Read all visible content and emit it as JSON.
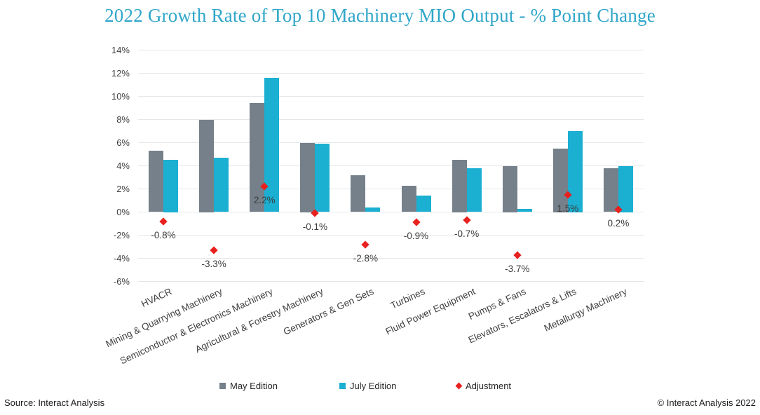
{
  "chart_data": {
    "type": "bar",
    "title": "2022 Growth Rate of Top 10 Machinery MIO Output - % Point Change",
    "categories": [
      "HVACR",
      "Mining & Quarrying Machinery",
      "Semiconductor & Electronics Machinery",
      "Agricultural & Forestry Machinery",
      "Generators & Gen Sets",
      "Turbines",
      "Fluid Power Equipment",
      "Pumps & Fans",
      "Elevators, Escalators & Lifts",
      "Metallurgy Machinery"
    ],
    "series": [
      {
        "name": "May Edition",
        "values": [
          5.3,
          8.0,
          9.4,
          6.0,
          3.2,
          2.3,
          4.5,
          4.0,
          5.5,
          3.8
        ]
      },
      {
        "name": "July Edition",
        "values": [
          4.5,
          4.7,
          11.6,
          5.9,
          0.4,
          1.4,
          3.8,
          0.3,
          7.0,
          4.0
        ]
      }
    ],
    "adjustment": {
      "name": "Adjustment",
      "values": [
        -0.8,
        -3.3,
        2.2,
        -0.1,
        -2.8,
        -0.9,
        -0.7,
        -3.7,
        1.5,
        0.2
      ],
      "labels": [
        "-0.8%",
        "-3.3%",
        "2.2%",
        "-0.1%",
        "-2.8%",
        "-0.9%",
        "-0.7%",
        "-3.7%",
        "1.5%",
        "0.2%"
      ]
    },
    "y_axis": {
      "min": -6,
      "max": 14,
      "step": 2,
      "unit": "%",
      "tick_labels": [
        "14%",
        "12%",
        "10%",
        "8%",
        "6%",
        "4%",
        "2%",
        "0%",
        "-2%",
        "-4%",
        "-6%"
      ]
    },
    "legend": [
      {
        "label": "May Edition",
        "marker": "square"
      },
      {
        "label": "July Edition",
        "marker": "square"
      },
      {
        "label": "Adjustment",
        "marker": "diamond"
      }
    ],
    "legend_position": "bottom",
    "grid": true,
    "colors": {
      "may_edition": "#75808a",
      "july_edition": "#1bafd2",
      "adjustment": "#e8211f",
      "title": "#2fa6c9"
    }
  },
  "footer": {
    "source": "Source: Interact Analysis",
    "copyright": "© Interact Analysis 2022"
  }
}
